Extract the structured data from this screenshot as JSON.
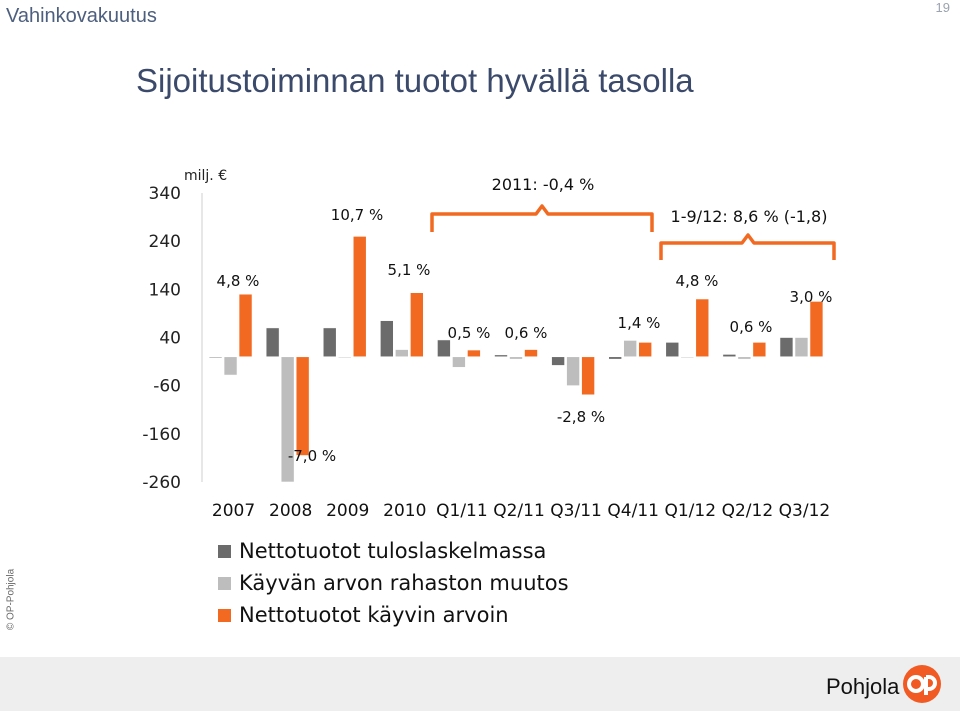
{
  "header": {
    "title": "Vahinkovakuutus",
    "page_number": "19"
  },
  "slide_title": "Sijoitustoiminnan tuotot hyvällä tasolla",
  "copyright": "© OP-Pohjola",
  "brand": {
    "name": "Pohjola",
    "color": "#f15a22"
  },
  "colors": {
    "dark": "#6b6b6b",
    "light": "#bdbdbd",
    "orange": "#f26a21"
  },
  "chart_data": {
    "type": "bar",
    "unit_label": "milj. €",
    "categories": [
      "2007",
      "2008",
      "2009",
      "2010",
      "Q1/11",
      "Q2/11",
      "Q3/11",
      "Q4/11",
      "Q1/12",
      "Q2/12",
      "Q3/12"
    ],
    "series": [
      {
        "name": "Nettotuotot tuloslaskelmassa",
        "values": [
          0,
          60,
          60,
          75,
          35,
          4,
          -18,
          -5,
          30,
          5,
          40
        ]
      },
      {
        "name": "Käyvän arvon rahaston muutos",
        "values": [
          -38,
          -260,
          0,
          15,
          -22,
          -5,
          -60,
          34,
          0,
          -5,
          40
        ]
      },
      {
        "name": "Nettotuotot käyvin arvoin",
        "values": [
          130,
          -205,
          250,
          133,
          14,
          15,
          -79,
          30,
          120,
          30,
          115
        ]
      }
    ],
    "ylim": [
      -260,
      340
    ],
    "yticks": [
      340,
      240,
      140,
      40,
      -60,
      -160,
      -260
    ],
    "data_labels": [
      "4,8 %",
      "-7,0 %",
      "10,7 %",
      "5,1 %",
      "0,5 %",
      "0,6 %",
      "-2,8 %",
      "1,4 %",
      "4,8 %",
      "0,6 %",
      "3,0 %"
    ],
    "annotations": [
      "2011: -0,4 %",
      "1-9/12: 8,6 % (-1,8)"
    ]
  }
}
